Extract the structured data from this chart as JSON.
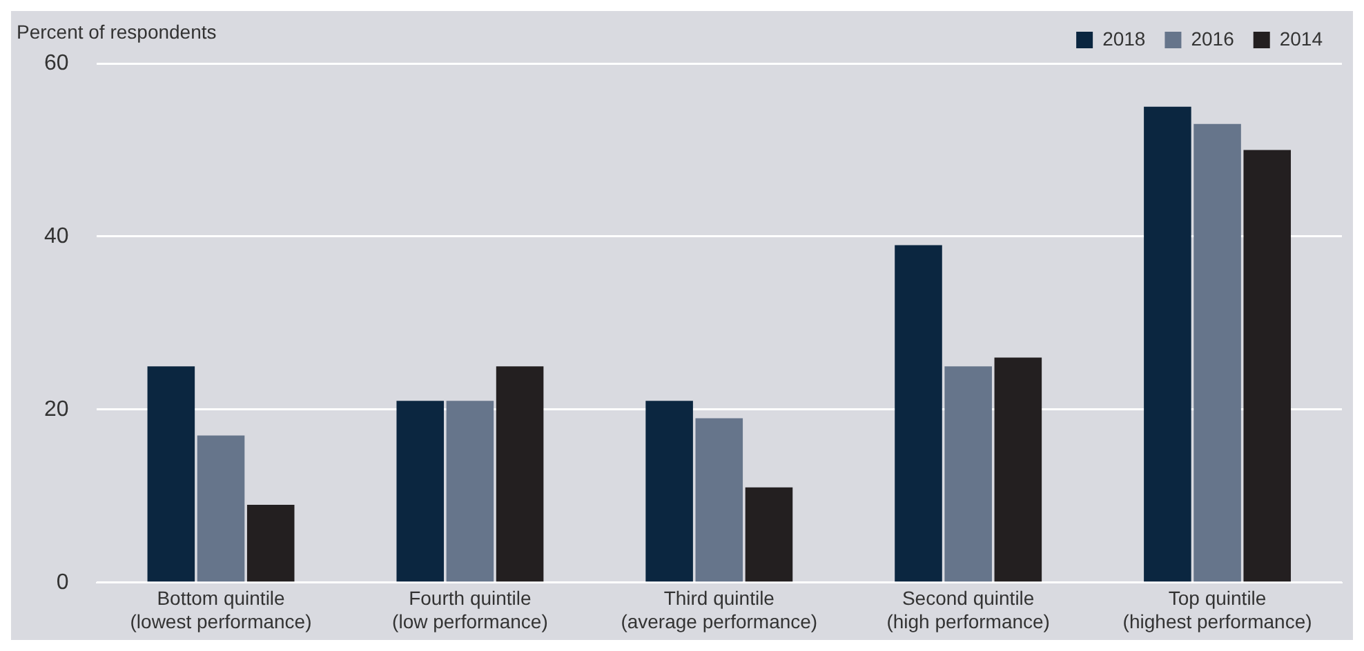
{
  "chart_data": {
    "type": "bar",
    "ylabel": "Percent of respondents",
    "categories": [
      "Bottom quintile\n(lowest performance)",
      "Fourth quintile\n(low performance)",
      "Third quintile\n(average performance)",
      "Second quintile\n(high performance)",
      "Top quintile\n(highest performance)"
    ],
    "series": [
      {
        "name": "2018",
        "color": "#0b2640",
        "values": [
          25,
          21,
          21,
          39,
          55
        ]
      },
      {
        "name": "2016",
        "color": "#66758b",
        "values": [
          17,
          21,
          19,
          25,
          53
        ]
      },
      {
        "name": "2014",
        "color": "#231f20",
        "values": [
          9,
          25,
          11,
          26,
          50
        ]
      }
    ],
    "ylim": [
      0,
      60
    ],
    "yticks": [
      0,
      20,
      40,
      60
    ],
    "grid": "y",
    "legend": "top right"
  }
}
